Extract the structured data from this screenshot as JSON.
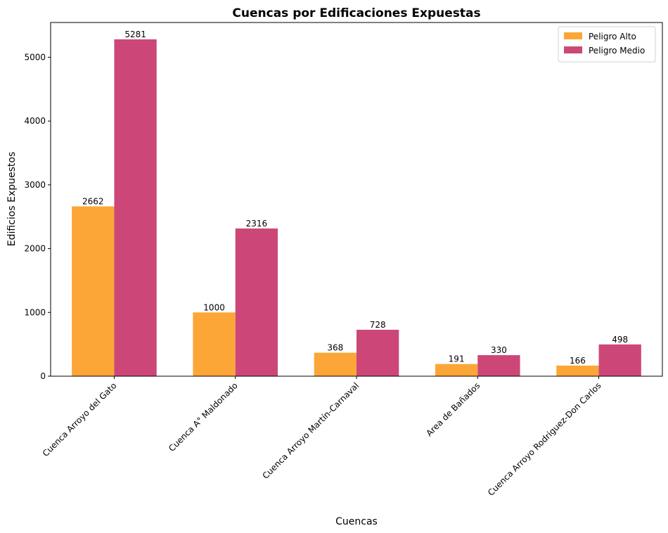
{
  "chart_data": {
    "type": "bar",
    "title": "Cuencas por Edificaciones Expuestas",
    "xlabel": "Cuencas",
    "ylabel": "Edificios Expuestos",
    "categories": [
      "Cuenca Arroyo del Gato",
      "Cuenca A° Maldonado",
      "Cuenca Arroyo Martín-Carnaval",
      "Area de Bañados",
      "Cuenca Arroyo Rodriguez-Don Carlos"
    ],
    "series": [
      {
        "name": "Peligro Alto",
        "color": "#fba637",
        "values": [
          2662,
          1000,
          368,
          191,
          166
        ]
      },
      {
        "name": "Peligro Medio",
        "color": "#cc4778",
        "values": [
          5281,
          2316,
          728,
          330,
          498
        ]
      }
    ],
    "ylim": [
      0,
      5545
    ],
    "yticks": [
      0,
      1000,
      2000,
      3000,
      4000,
      5000
    ],
    "grid": false,
    "legend_position": "top-right"
  }
}
